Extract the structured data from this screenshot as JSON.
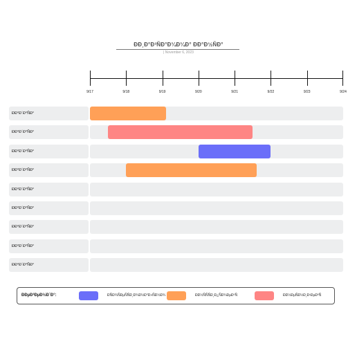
{
  "title": "ÐÐ¸Ð°Ð³ÑÐ°Ð¼Ð¼Ð° ÐÐ°Ð½ÑÐ°",
  "subtitle": "| November 6, 2023",
  "timeline": {
    "dates": [
      "9/17",
      "9/18",
      "9/19",
      "9/20",
      "9/21",
      "9/22",
      "9/23",
      "9/24"
    ]
  },
  "colors": {
    "blue": "#6b6ef9",
    "orange": "#ffa057",
    "red": "#fe8584",
    "track": "#edeeef"
  },
  "chart_data": {
    "type": "gantt",
    "x_range": [
      "9/17",
      "9/24"
    ],
    "rows": [
      {
        "label": "ÐÐ°Ð´Ð°ÑÐ°",
        "start": "9/17",
        "end": "9/19.1",
        "color": "orange"
      },
      {
        "label": "ÐÐ°Ð´Ð°ÑÐ°",
        "start": "9/17.5",
        "end": "9/21.5",
        "color": "red"
      },
      {
        "label": "ÐÐ°Ð´Ð°ÑÐ°",
        "start": "9/20",
        "end": "9/22",
        "color": "blue"
      },
      {
        "label": "ÐÐ°Ð´Ð°ÑÐ°",
        "start": "9/18",
        "end": "9/21.6",
        "color": "orange"
      },
      {
        "label": "ÐÐ°Ð´Ð°ÑÐ°"
      },
      {
        "label": "ÐÐ°Ð´Ð°ÑÐ°"
      },
      {
        "label": "ÐÐ°Ð´Ð°ÑÐ°"
      },
      {
        "label": "ÐÐ°Ð´Ð°ÑÐ°"
      },
      {
        "label": "ÐÐ°Ð´Ð°ÑÐ°"
      }
    ]
  },
  "bars_numeric": [
    {
      "row": 0,
      "start": 0.0,
      "end": 2.1,
      "color": "orange"
    },
    {
      "row": 1,
      "start": 0.5,
      "end": 4.5,
      "color": "red"
    },
    {
      "row": 2,
      "start": 3.0,
      "end": 5.0,
      "color": "blue"
    },
    {
      "row": 3,
      "start": 1.0,
      "end": 4.6,
      "color": "orange"
    }
  ],
  "legend": {
    "title": "ÐÐµÐ³ÐµÐ½Ð´Ð°:",
    "items": [
      {
        "label": "ÐÑÐ¾ÑÐµÑÑÐ¸Ð¾Ð½Ð°Ð»ÑÐ½Ð¾",
        "color": "blue"
      },
      {
        "label": "ÐÐ½ÑÑÑÐ¸Ð¿ÑÐ¾ÐµÐºÑ",
        "color": "orange"
      },
      {
        "label": "ÐÐ½ÐµÑÐ½Ð¸Ð¹ÐµÐºÑ",
        "color": "red"
      }
    ]
  }
}
